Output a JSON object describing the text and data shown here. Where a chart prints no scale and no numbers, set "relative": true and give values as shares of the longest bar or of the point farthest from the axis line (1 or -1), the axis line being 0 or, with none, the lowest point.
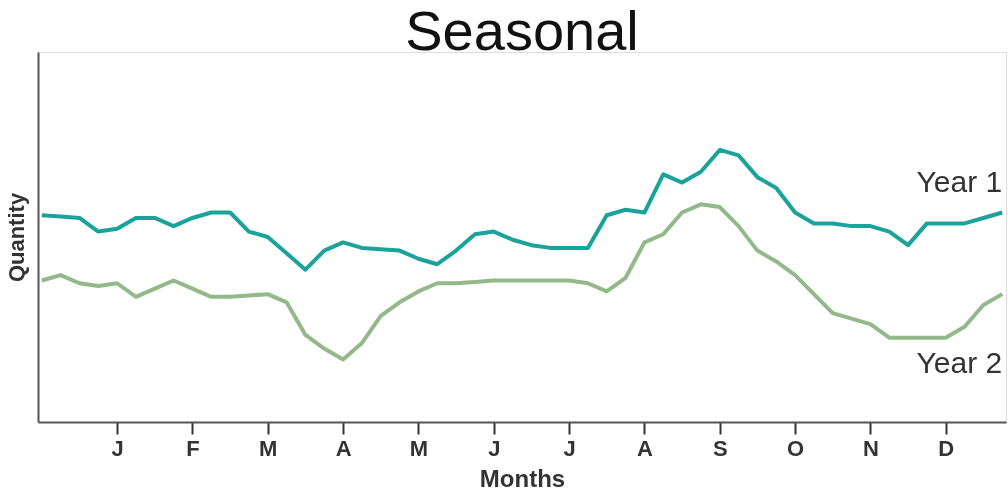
{
  "chart_data": {
    "type": "line",
    "title": "Seasonal",
    "xlabel": "Months",
    "ylabel": "Quantity",
    "relative": true,
    "grid": false,
    "marker": "none",
    "line_style": "solid",
    "categories": [
      null,
      null,
      null,
      null,
      "J",
      null,
      null,
      null,
      "F",
      null,
      null,
      null,
      "M",
      null,
      null,
      null,
      "A",
      null,
      null,
      null,
      "M",
      null,
      null,
      null,
      "J",
      null,
      null,
      null,
      "J",
      null,
      null,
      null,
      "A",
      null,
      null,
      null,
      "S",
      null,
      null,
      null,
      "O",
      null,
      null,
      null,
      "N",
      null,
      null,
      null,
      "D",
      null,
      null,
      null
    ],
    "series": [
      {
        "name": "Year 1",
        "color": "#1aa39a",
        "values": [
          0.76,
          0.755,
          0.75,
          0.7,
          0.71,
          0.75,
          0.75,
          0.72,
          0.75,
          0.77,
          0.77,
          0.7,
          0.68,
          0.62,
          0.56,
          0.63,
          0.66,
          0.64,
          0.635,
          0.63,
          0.6,
          0.58,
          0.63,
          0.69,
          0.7,
          0.67,
          0.65,
          0.64,
          0.64,
          0.64,
          0.76,
          0.78,
          0.77,
          0.91,
          0.88,
          0.92,
          1.0,
          0.98,
          0.9,
          0.86,
          0.77,
          0.73,
          0.73,
          0.72,
          0.72,
          0.7,
          0.65,
          0.73,
          0.73,
          0.73,
          0.75,
          0.77
        ]
      },
      {
        "name": "Year 2",
        "color": "#93b98a",
        "values": [
          0.52,
          0.54,
          0.51,
          0.5,
          0.51,
          0.46,
          0.49,
          0.52,
          0.49,
          0.46,
          0.46,
          0.465,
          0.47,
          0.44,
          0.32,
          0.27,
          0.23,
          0.29,
          0.39,
          0.44,
          0.48,
          0.51,
          0.51,
          0.515,
          0.52,
          0.52,
          0.52,
          0.52,
          0.52,
          0.51,
          0.48,
          0.53,
          0.66,
          0.69,
          0.77,
          0.8,
          0.79,
          0.72,
          0.63,
          0.59,
          0.54,
          0.47,
          0.4,
          0.38,
          0.36,
          0.31,
          0.31,
          0.31,
          0.31,
          0.35,
          0.43,
          0.47
        ]
      }
    ]
  }
}
